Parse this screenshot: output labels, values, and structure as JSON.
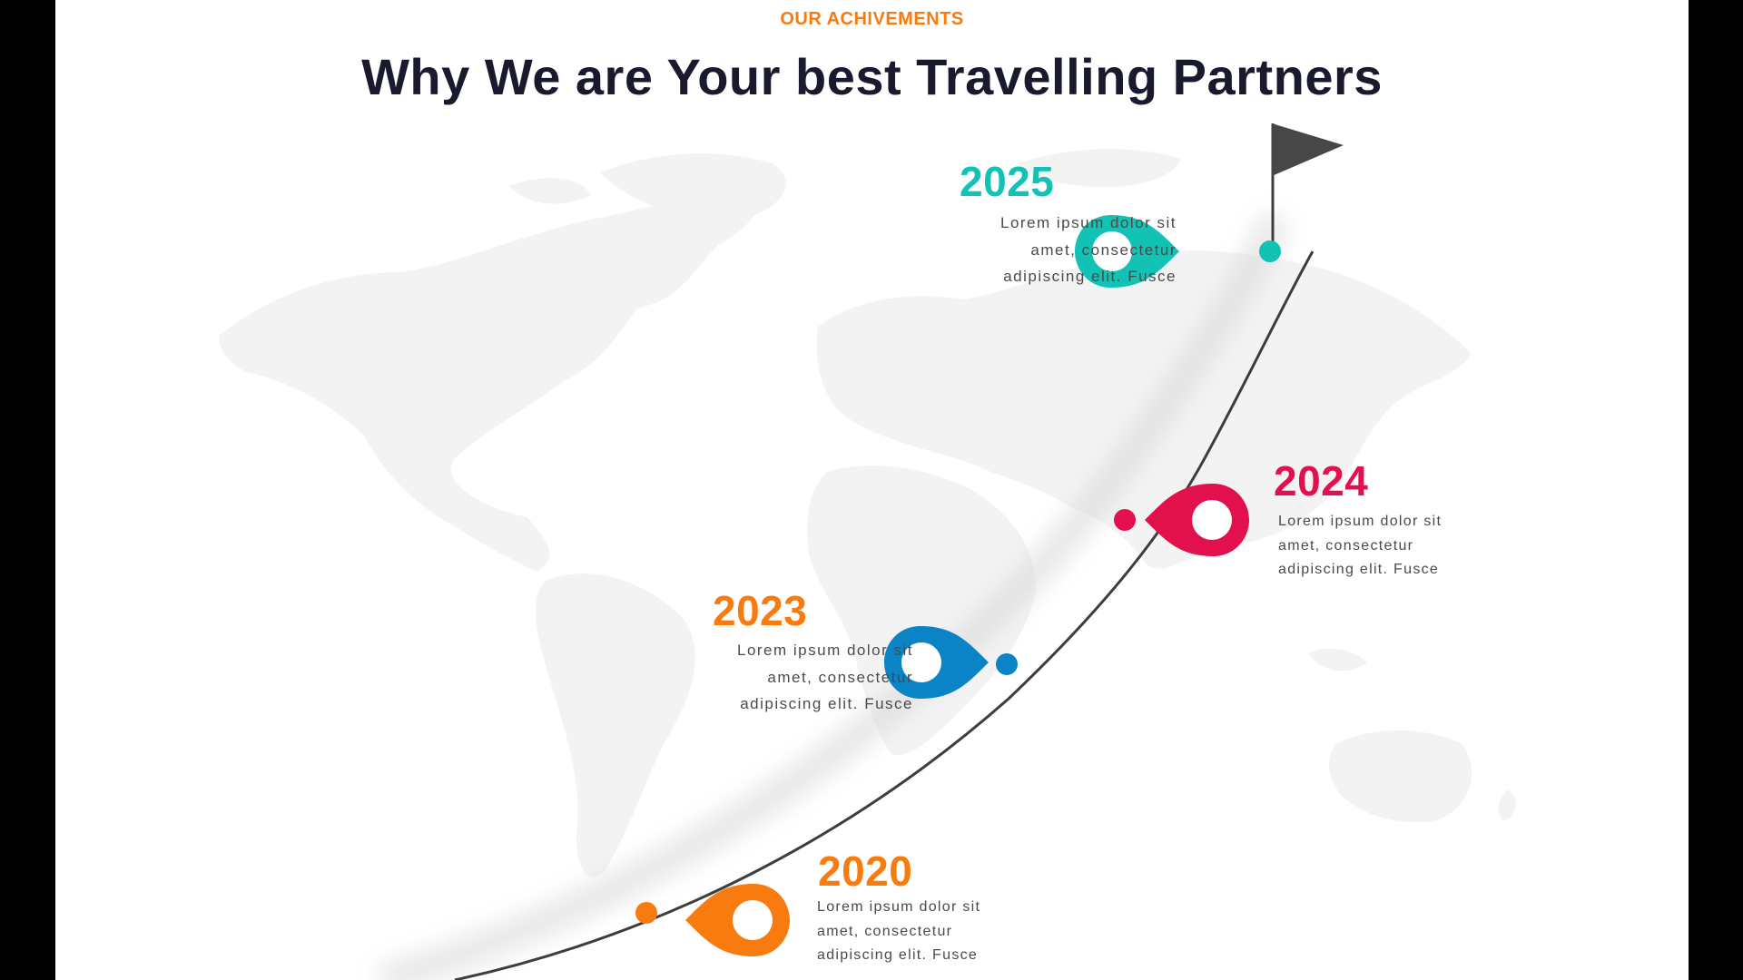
{
  "header": {
    "eyebrow": "OUR ACHIVEMENTS",
    "title": "Why We are Your best Travelling Partners"
  },
  "colors": {
    "eyebrow": "#f77b0f",
    "teal": "#12c2b4",
    "crimson": "#e2114e",
    "blue": "#0a84c6",
    "orange": "#f77b0f",
    "path": "#3d3d3d",
    "flag": "#474747",
    "map": "#f3f3f3"
  },
  "milestones": [
    {
      "year": "2025",
      "lines": [
        "Lorem ipsum dolor sit",
        "amet, consectetur",
        "adipiscing elit. Fusce"
      ],
      "pin_icon": "location-pin-icon",
      "color_key": "teal"
    },
    {
      "year": "2024",
      "lines": [
        "Lorem ipsum dolor sit",
        "amet, consectetur",
        "adipiscing elit. Fusce"
      ],
      "pin_icon": "location-pin-icon",
      "color_key": "crimson"
    },
    {
      "year": "2023",
      "lines": [
        "Lorem ipsum dolor sit",
        "amet, consectetur",
        "adipiscing elit. Fusce"
      ],
      "pin_icon": "location-pin-icon",
      "color_key": "blue"
    },
    {
      "year": "2020",
      "lines": [
        "Lorem ipsum dolor sit",
        "amet, consectetur",
        "adipiscing elit. Fusce"
      ],
      "pin_icon": "location-pin-icon",
      "color_key": "orange"
    }
  ],
  "decor": {
    "background": "world-map-icon",
    "goal": "flag-icon"
  }
}
